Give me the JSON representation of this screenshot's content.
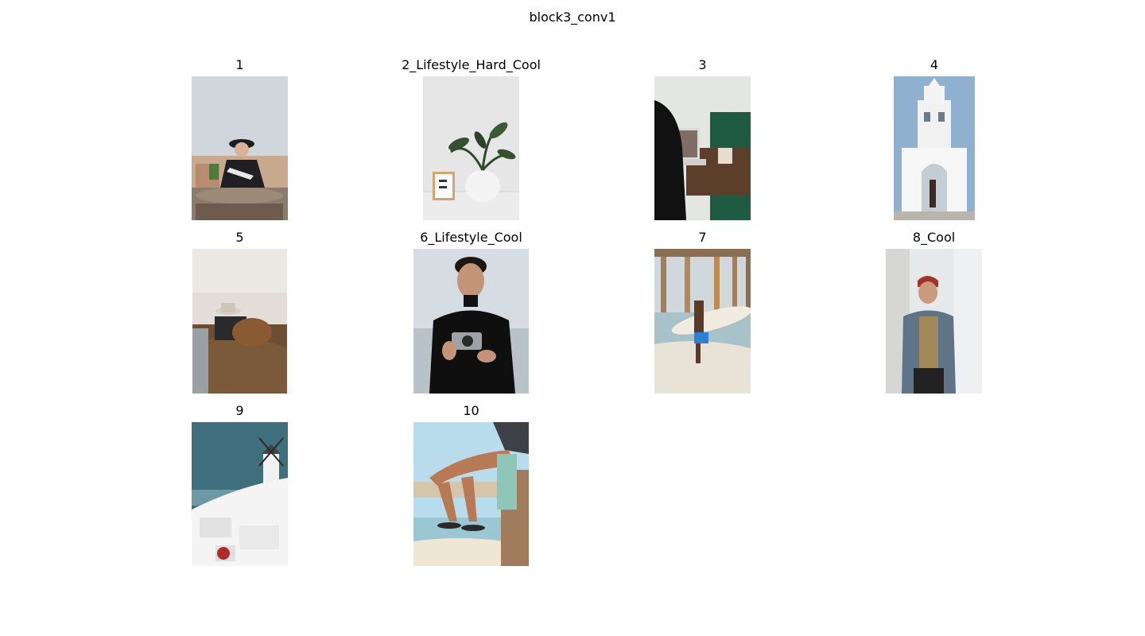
{
  "figure": {
    "title": "block3_conv1"
  },
  "images": [
    {
      "label": "1",
      "scene": "woman in black hat seated at round table, rooftops behind"
    },
    {
      "label": "2_Lifestyle_Hard_Cool",
      "scene": "potted plant in white pot beside small framed card"
    },
    {
      "label": "3",
      "scene": "person at laptop on wooden table with coffee cup"
    },
    {
      "label": "4",
      "scene": "white bell tower arch under blue sky, person walking"
    },
    {
      "label": "5",
      "scene": "hat, camera and leather bag on a brown bed"
    },
    {
      "label": "6_Lifestyle_Cool",
      "scene": "man in black turtleneck holding a camera"
    },
    {
      "label": "7",
      "scene": "surfer carrying surfboard under wooden pier"
    },
    {
      "label": "8_Cool",
      "scene": "man in red beanie and denim jacket leaning on wall"
    },
    {
      "label": "9",
      "scene": "white houses and windmill by the sea"
    },
    {
      "label": "10",
      "scene": "legs in flip-flops dangling over beach deck"
    }
  ]
}
